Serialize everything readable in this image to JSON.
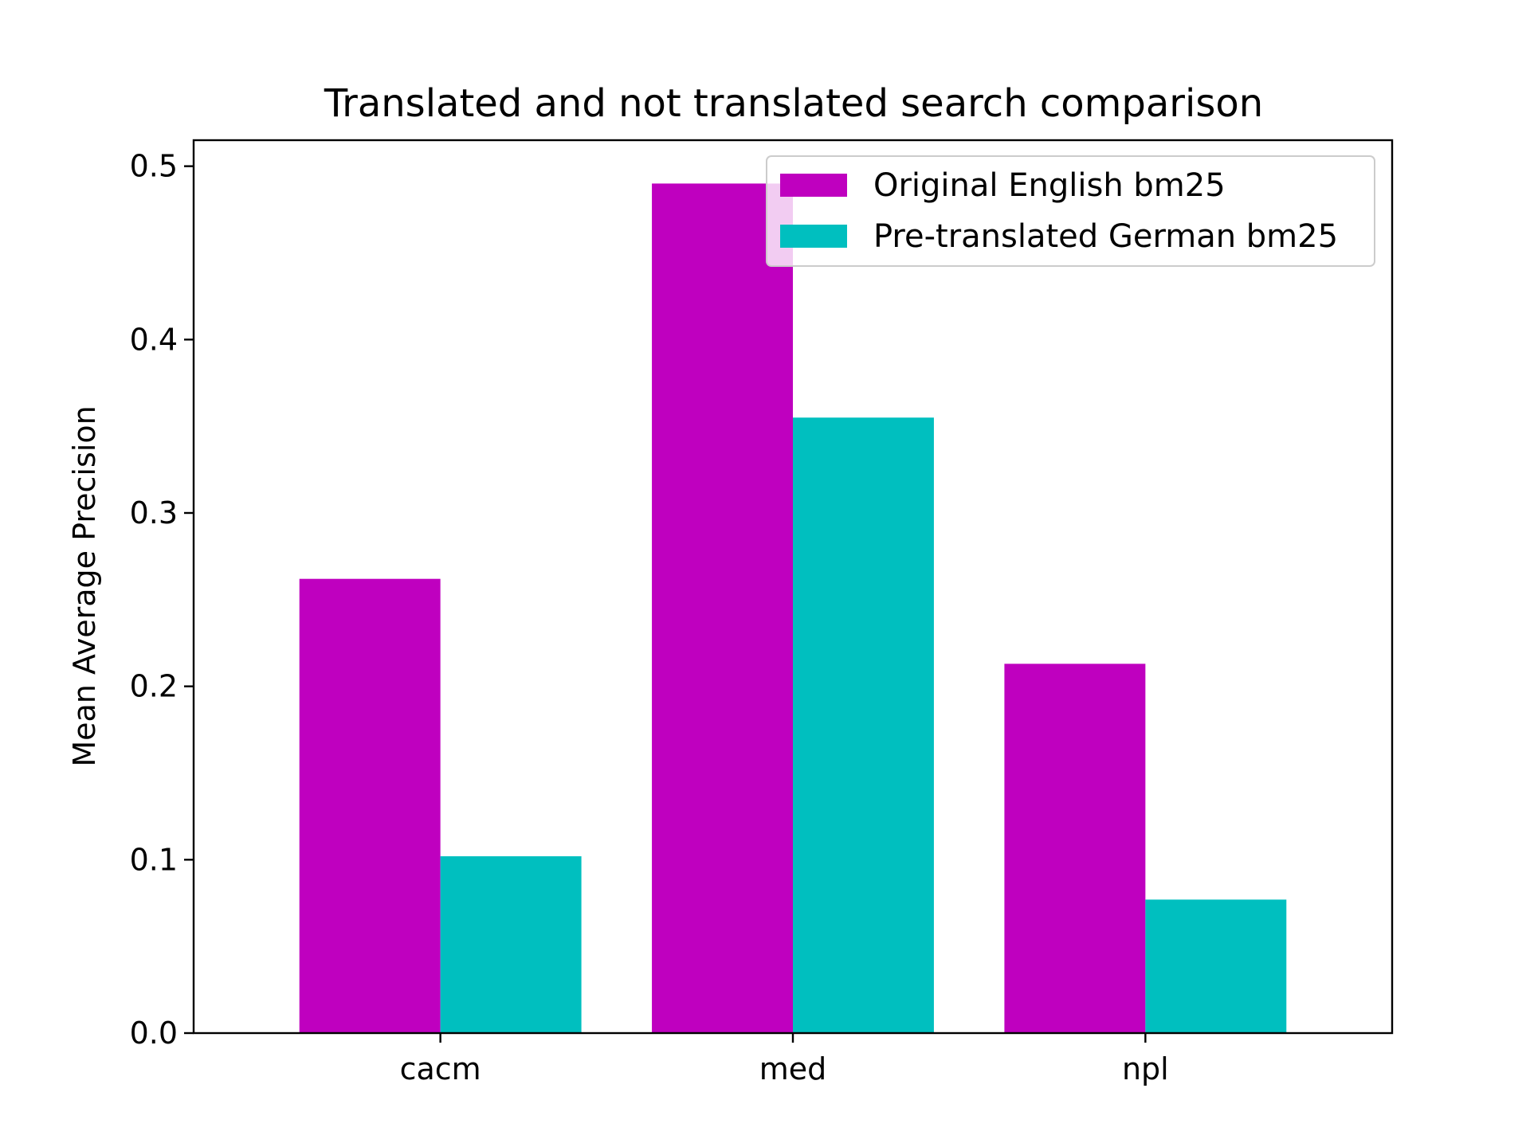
{
  "chart_data": {
    "type": "bar",
    "title": "Translated and not translated search comparison",
    "xlabel": "",
    "ylabel": "Mean Average Precision",
    "categories": [
      "cacm",
      "med",
      "npl"
    ],
    "series": [
      {
        "name": "Original English bm25",
        "color": "#bf00bf",
        "values": [
          0.262,
          0.49,
          0.213
        ]
      },
      {
        "name": "Pre-translated German bm25",
        "color": "#00bfbf",
        "values": [
          0.102,
          0.355,
          0.077
        ]
      }
    ],
    "ylim": [
      0,
      0.515
    ],
    "yticks": [
      "0.0",
      "0.1",
      "0.2",
      "0.3",
      "0.4",
      "0.5"
    ],
    "grid": false,
    "legend_position": "top-right"
  }
}
